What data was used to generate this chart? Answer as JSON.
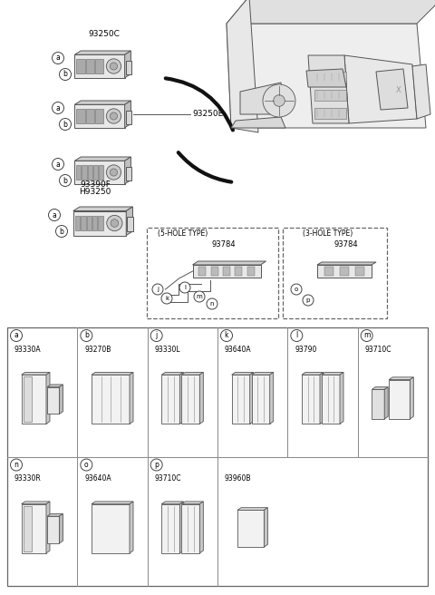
{
  "bg_color": "#ffffff",
  "text_color": "#000000",
  "line_color": "#444444",
  "grid_color": "#888888",
  "parts_row1": [
    {
      "letter": "a",
      "part": "93330A",
      "style": "wide_left"
    },
    {
      "letter": "b",
      "part": "93270B",
      "style": "single"
    },
    {
      "letter": "j",
      "part": "93330L",
      "style": "double"
    },
    {
      "letter": "k",
      "part": "93640A",
      "style": "double"
    },
    {
      "letter": "l",
      "part": "93790",
      "style": "double"
    },
    {
      "letter": "m",
      "part": "93710C",
      "style": "small_right"
    }
  ],
  "parts_row2": [
    {
      "letter": "n",
      "part": "93330R",
      "style": "wide_left"
    },
    {
      "letter": "o",
      "part": "93640A",
      "style": "single_tall"
    },
    {
      "letter": "p",
      "part": "93710C",
      "style": "double"
    },
    {
      "letter": "",
      "part": "93960B",
      "style": "single_small"
    }
  ],
  "upper_panels": [
    {
      "label": "93250C",
      "label_above": true,
      "n_slots": 3,
      "has_knob": true
    },
    {
      "label": "93250E",
      "label_right": true,
      "n_slots": 3,
      "has_knob": true
    },
    {
      "label": "93390F\nH93250",
      "label_below": true,
      "n_slots": 5,
      "has_knob": true
    },
    {
      "label": "",
      "n_slots": 5,
      "has_knob": true
    }
  ],
  "small_font": 6.0,
  "label_font": 6.5,
  "circle_font": 5.5
}
